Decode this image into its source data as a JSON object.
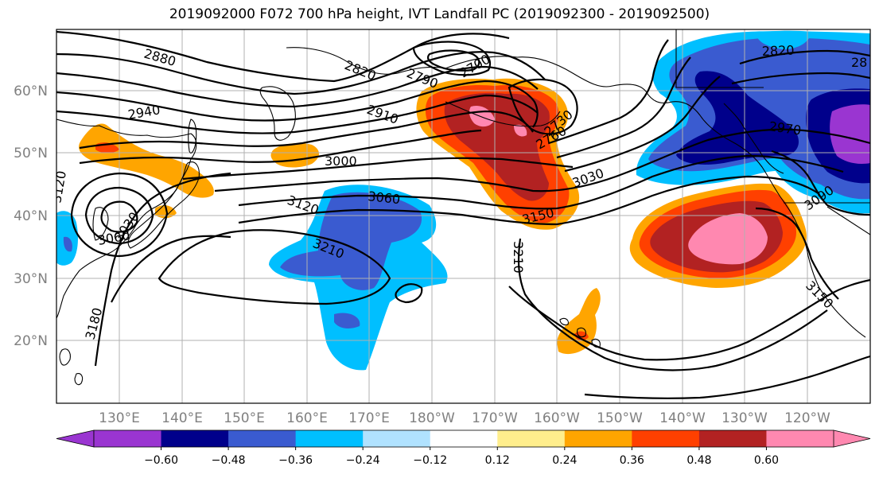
{
  "title": "2019092000 F072 700 hPa height, IVT Landfall PC (2019092300 - 2019092500)",
  "latitude_labels": [
    "20°N",
    "30°N",
    "40°N",
    "50°N",
    "60°N"
  ],
  "longitude_labels": [
    "130°E",
    "140°E",
    "150°E",
    "160°E",
    "170°E",
    "180°W",
    "170°W",
    "160°W",
    "150°W",
    "140°W",
    "130°W",
    "120°W"
  ],
  "colorbar": {
    "tick_labels": [
      "−0.60",
      "−0.48",
      "−0.36",
      "−0.24",
      "−0.12",
      "0.12",
      "0.24",
      "0.36",
      "0.48",
      "0.60"
    ],
    "colors": [
      "#9a35d1",
      "#00008b",
      "#3a5bd0",
      "#00bfff",
      "#b0e2ff",
      "#ffffff",
      "#ffee8c",
      "#ffa500",
      "#ff4000",
      "#b22222",
      "#ff88b0"
    ],
    "extend": "both"
  },
  "contour_labels": [
    "2880",
    "2940",
    "2820",
    "2790",
    "2700",
    "2910",
    "2730",
    "2760",
    "3000",
    "3060",
    "3120",
    "3030",
    "3150",
    "3210",
    "3210",
    "3120",
    "3060",
    "3030",
    "3180",
    "2820",
    "2970",
    "3090",
    "3150",
    "28"
  ],
  "colors": {
    "grid": "#b0b0b0",
    "axis_labels": "#808080",
    "contour": "#000000"
  }
}
